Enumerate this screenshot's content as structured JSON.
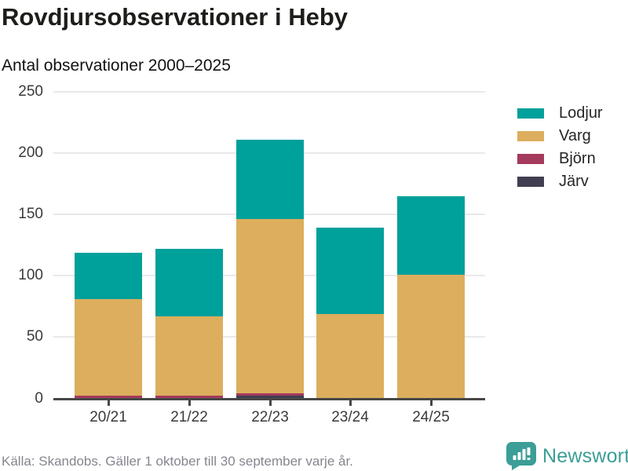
{
  "header": {
    "title": "Rovdjursobservationer i Heby",
    "subtitle": "Antal observationer 2000–2025"
  },
  "footer": {
    "source": "Källa: Skandobs. Gäller 1 oktober till 30 september varje år.",
    "brand": "Newsworthy"
  },
  "colors": {
    "lodjur": "#00a09b",
    "varg": "#dcae5d",
    "bjorn": "#a43a5c",
    "jarv": "#413e51",
    "axis": "#474747",
    "grid": "#e9e9e9",
    "logo_teal": "#3b9e97",
    "footer_text": "#85858f"
  },
  "chart_data": {
    "type": "bar",
    "stacked": true,
    "title": "Rovdjursobservationer i Heby",
    "subtitle": "Antal observationer 2000–2025",
    "categories": [
      "20/21",
      "21/22",
      "22/23",
      "23/24",
      "24/25"
    ],
    "series": [
      {
        "name": "Järv",
        "key": "jarv",
        "color": "#413e51",
        "values": [
          0,
          0,
          2,
          0,
          0
        ]
      },
      {
        "name": "Björn",
        "key": "bjorn",
        "color": "#a43a5c",
        "values": [
          2,
          2,
          2,
          0,
          0
        ]
      },
      {
        "name": "Varg",
        "key": "varg",
        "color": "#dcae5d",
        "values": [
          79,
          65,
          142,
          69,
          101
        ]
      },
      {
        "name": "Lodjur",
        "key": "lodjur",
        "color": "#00a09b",
        "values": [
          38,
          55,
          65,
          70,
          64
        ]
      }
    ],
    "totals": [
      119,
      122,
      211,
      139,
      165
    ],
    "legend_order": [
      "Lodjur",
      "Varg",
      "Björn",
      "Järv"
    ],
    "legend_position": "right",
    "y_ticks": [
      0,
      50,
      100,
      150,
      200,
      250
    ],
    "ylim": [
      0,
      250
    ],
    "grid": true
  }
}
